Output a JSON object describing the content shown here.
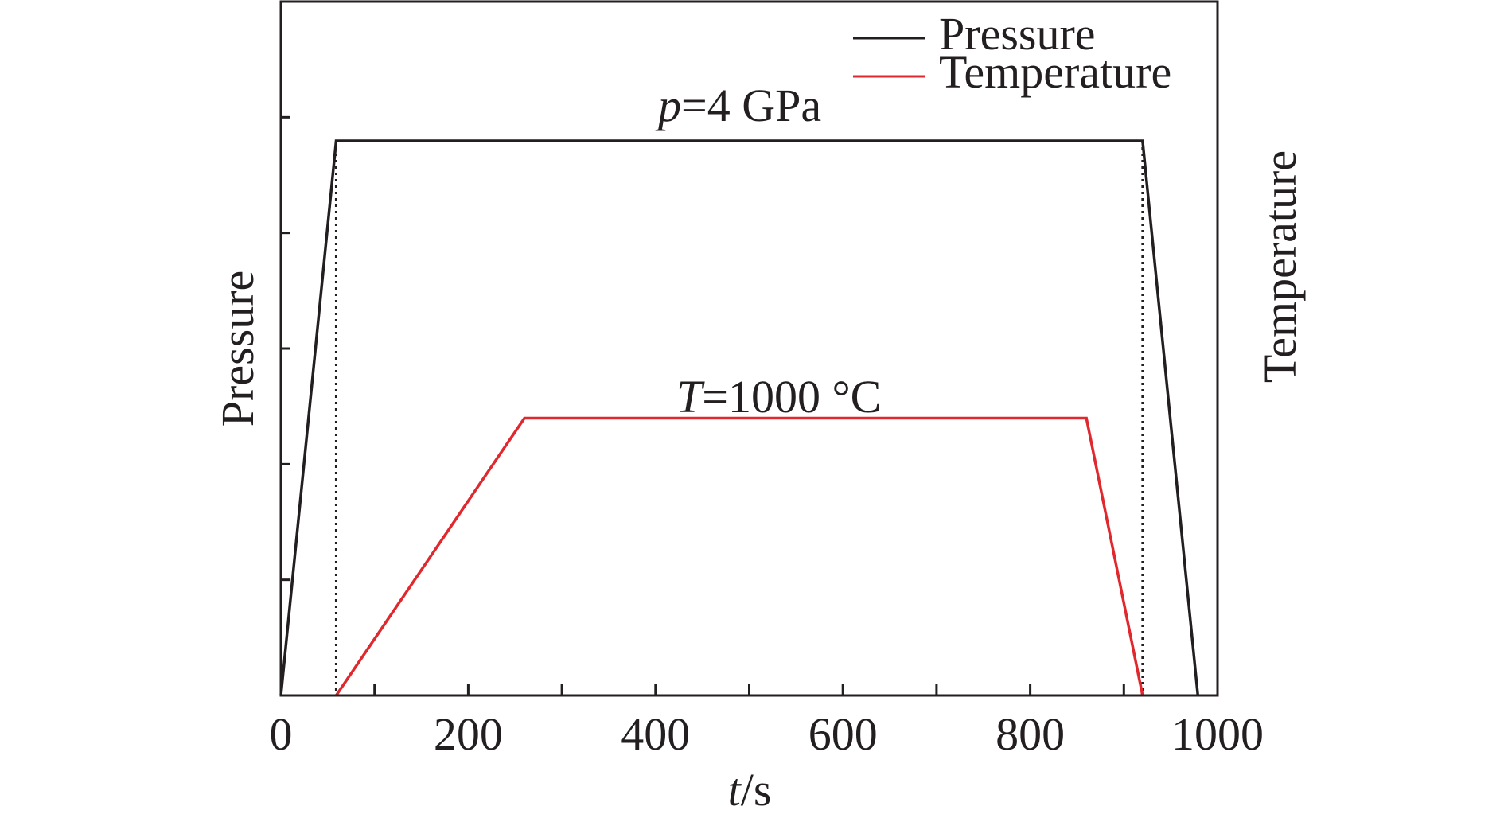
{
  "chart_data": {
    "type": "line",
    "title": "",
    "xlabel_var": "t",
    "xlabel_unit": "/s",
    "ylabel_left": "Pressure",
    "ylabel_right": "Temperature",
    "xlim": [
      0,
      1000
    ],
    "ylim": [
      0,
      10
    ],
    "x_ticks": [
      0,
      200,
      400,
      600,
      800,
      1000
    ],
    "x_minor_ticks": [
      100,
      300,
      500,
      700,
      900
    ],
    "y_ticks_left": [
      1,
      2,
      3,
      4,
      5,
      6,
      7,
      8,
      9
    ],
    "series": [
      {
        "name": "Pressure",
        "color": "#231f20",
        "x": [
          0,
          59,
          920,
          979
        ],
        "y": [
          0,
          10,
          10,
          0
        ]
      },
      {
        "name": "Temperature",
        "color": "#e0292e",
        "x": [
          59,
          260,
          860,
          920
        ],
        "y": [
          0,
          5,
          5,
          0
        ]
      }
    ],
    "dotted_markers": [
      59,
      920
    ],
    "annotations": [
      {
        "var": "p",
        "rest": "=4 GPa",
        "x": 400,
        "y": 10
      },
      {
        "var": "T",
        "rest": "=1000 °C",
        "x": 540,
        "y": 5
      }
    ],
    "legend_position": "top-right"
  }
}
